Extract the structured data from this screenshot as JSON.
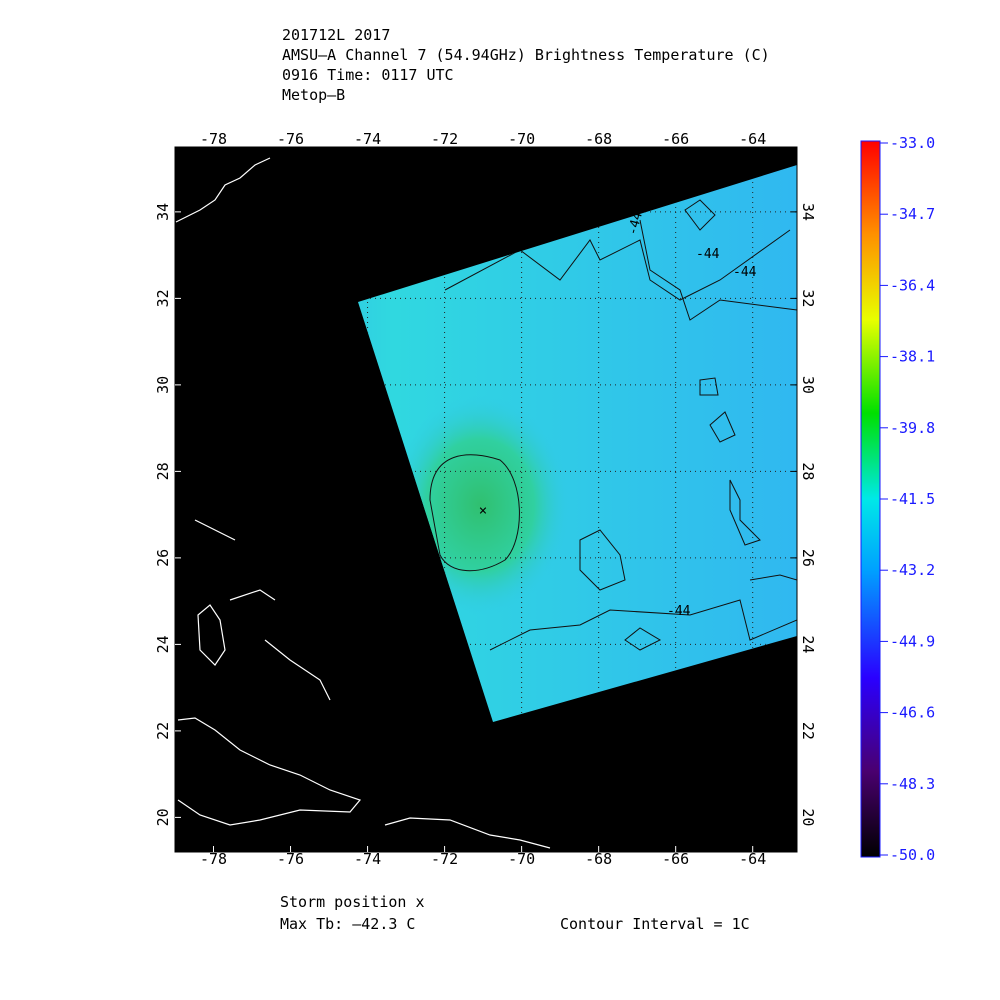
{
  "header": {
    "lines": [
      "201712L 2017",
      "AMSU—A Channel 7 (54.94GHz) Brightness Temperature (C)",
      "0916 Time: 0117 UTC",
      "Metop—B"
    ]
  },
  "map": {
    "lon_range": [
      -79,
      -62.85
    ],
    "lat_range": [
      19.2,
      35.5
    ],
    "lon_ticks": [
      -78,
      -76,
      -74,
      -72,
      -70,
      -68,
      -66,
      -64
    ],
    "lat_ticks": [
      34,
      32,
      30,
      28,
      26,
      24,
      22,
      20
    ],
    "contour_labels": [
      "-44",
      "-44",
      "-44",
      "-44"
    ]
  },
  "colorbar": {
    "range": [
      -50,
      -33
    ],
    "ticks": [
      {
        "value": -33,
        "label": "-33.0"
      },
      {
        "value": -34.7,
        "label": "-34.7"
      },
      {
        "value": -36.4,
        "label": "-36.4"
      },
      {
        "value": -38.1,
        "label": "-38.1"
      },
      {
        "value": -39.8,
        "label": "-39.8"
      },
      {
        "value": -41.5,
        "label": "-41.5"
      },
      {
        "value": -43.2,
        "label": "-43.2"
      },
      {
        "value": -44.9,
        "label": "-44.9"
      },
      {
        "value": -46.6,
        "label": "-46.6"
      },
      {
        "value": -48.3,
        "label": "-48.3"
      },
      {
        "value": -50,
        "label": "-50.0"
      }
    ]
  },
  "footer": {
    "storm": "Storm position x",
    "max_tb": "Max Tb: —42.3    C",
    "contour": "Contour Interval = 1C"
  }
}
